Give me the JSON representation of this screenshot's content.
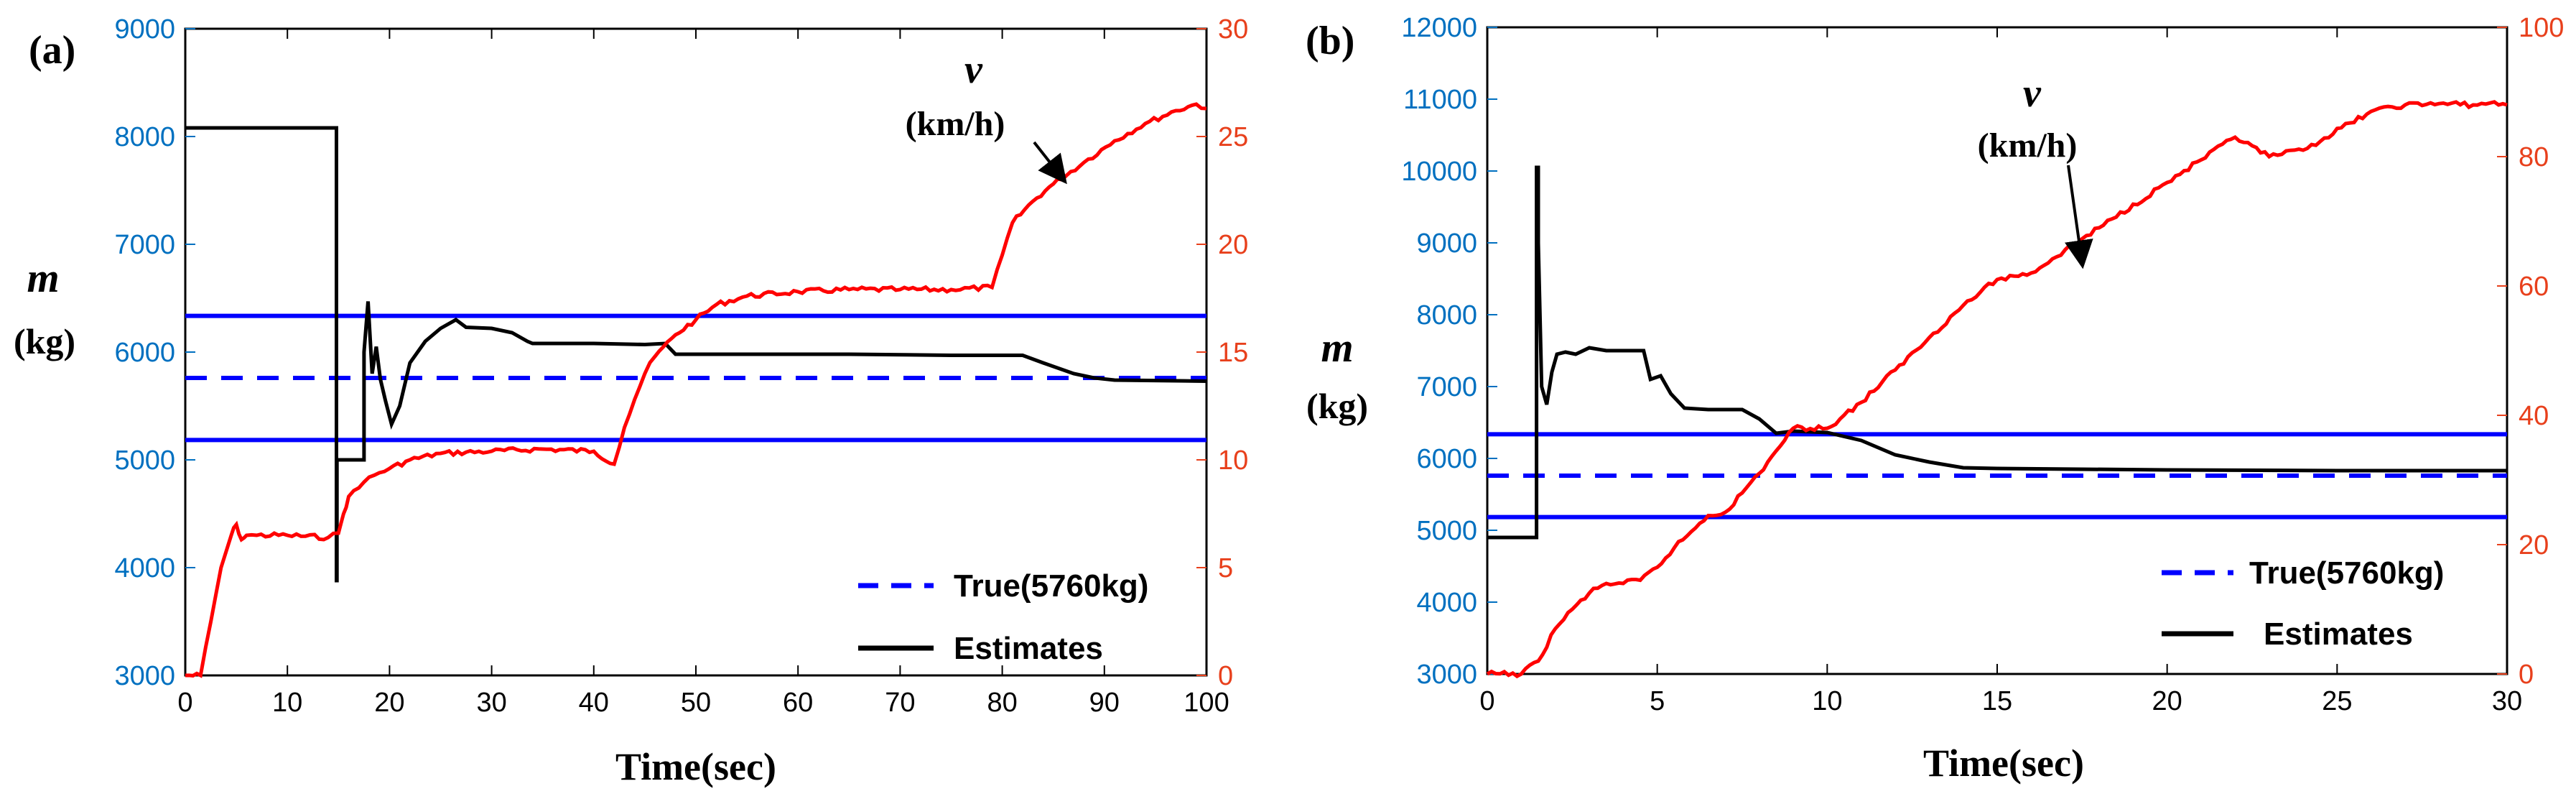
{
  "chart_data": [
    {
      "panel_label": "(a)",
      "type": "line",
      "xlabel": "Time(sec)",
      "ylabel_m": "m",
      "ylabel_unit": "(kg)",
      "xlim": [
        0,
        100
      ],
      "xticks": [
        0,
        10,
        20,
        30,
        40,
        50,
        60,
        70,
        80,
        90,
        100
      ],
      "ylim_left": [
        3000,
        9000
      ],
      "yticks_left": [
        3000,
        4000,
        5000,
        6000,
        7000,
        8000,
        9000
      ],
      "ylim_right": [
        0,
        30
      ],
      "yticks_right": [
        0,
        5,
        10,
        15,
        20,
        25,
        30
      ],
      "annotation_symbol": "v",
      "annotation_unit": "(km/h)",
      "annotation_target": [
        86,
        23
      ],
      "legend_true": "True(5760kg)",
      "legend_estimates": "Estimates",
      "bounds_kg": [
        6336,
        5184
      ],
      "true_kg": 5760,
      "series": [
        {
          "name": "Estimates",
          "axis": "left",
          "x": [
            0,
            14.8,
            14.8,
            14.85,
            14.85,
            17.5,
            17.5,
            17.9,
            18.3,
            18.7,
            19.1,
            19.6,
            20.2,
            21.0,
            22.0,
            23.5,
            25.0,
            26.5,
            27.5,
            30,
            32,
            33.5,
            34,
            40,
            45,
            47,
            48,
            55,
            65,
            75,
            82,
            84,
            87,
            89,
            91,
            100
          ],
          "y": [
            8080,
            8080,
            3880,
            3880,
            5000,
            5000,
            6000,
            6470,
            5800,
            6050,
            5750,
            5550,
            5330,
            5500,
            5900,
            6100,
            6220,
            6300,
            6230,
            6220,
            6180,
            6100,
            6080,
            6080,
            6070,
            6080,
            5980,
            5980,
            5980,
            5970,
            5970,
            5900,
            5800,
            5760,
            5740,
            5730
          ]
        },
        {
          "name": "v (km/h)",
          "axis": "right",
          "x": [
            0,
            1.5,
            2.5,
            3.5,
            4.5,
            5,
            5.5,
            6,
            7,
            10,
            14,
            15,
            15.5,
            16,
            17,
            18,
            19,
            20,
            22,
            25,
            30,
            35,
            40,
            42,
            43,
            44,
            45,
            46,
            48,
            50,
            52,
            55,
            60,
            65,
            70,
            75,
            79,
            80,
            81,
            83,
            85,
            88,
            91,
            94,
            97,
            99,
            100
          ],
          "y": [
            0,
            0,
            2.5,
            5,
            6.5,
            7,
            6.3,
            6.5,
            6.5,
            6.5,
            6.4,
            6.6,
            7.5,
            8.3,
            8.7,
            9.2,
            9.4,
            9.6,
            10,
            10.3,
            10.4,
            10.5,
            10.4,
            9.8,
            11.5,
            12.8,
            14,
            14.8,
            15.8,
            16.5,
            17.2,
            17.6,
            17.8,
            17.9,
            17.9,
            17.9,
            18,
            19.5,
            21,
            22,
            22.8,
            23.8,
            24.8,
            25.6,
            26.2,
            26.5,
            26.3
          ]
        }
      ]
    },
    {
      "panel_label": "(b)",
      "type": "line",
      "xlabel": "Time(sec)",
      "ylabel_m": "m",
      "ylabel_unit": "(kg)",
      "xlim": [
        0,
        30
      ],
      "xticks": [
        0,
        5,
        10,
        15,
        20,
        25,
        30
      ],
      "ylim_left": [
        3000,
        12000
      ],
      "yticks_left": [
        3000,
        4000,
        5000,
        6000,
        7000,
        8000,
        9000,
        10000,
        11000,
        12000
      ],
      "ylim_right": [
        0,
        100
      ],
      "yticks_right": [
        0,
        20,
        40,
        60,
        80,
        100
      ],
      "annotation_symbol": "v",
      "annotation_unit": "(km/h)",
      "annotation_target": [
        17.5,
        63.5
      ],
      "legend_true": "True(5760kg)",
      "legend_estimates": "Estimates",
      "bounds_kg": [
        6336,
        5184
      ],
      "true_kg": 5760,
      "series": [
        {
          "name": "Estimates",
          "axis": "left",
          "x": [
            0,
            1.45,
            1.45,
            1.5,
            1.5,
            1.6,
            1.75,
            1.9,
            2.05,
            2.3,
            2.6,
            3.0,
            3.5,
            4.0,
            4.6,
            4.8,
            5.1,
            5.4,
            5.8,
            6.5,
            7.5,
            8.0,
            8.5,
            9,
            10,
            11,
            12,
            13,
            14,
            15,
            20,
            25,
            30
          ],
          "y": [
            4900,
            4900,
            10050,
            10050,
            9000,
            7000,
            6750,
            7200,
            7450,
            7480,
            7450,
            7540,
            7500,
            7500,
            7500,
            7100,
            7150,
            6900,
            6700,
            6680,
            6680,
            6550,
            6350,
            6380,
            6360,
            6250,
            6050,
            5950,
            5870,
            5860,
            5840,
            5830,
            5830
          ]
        },
        {
          "name": "v (km/h)",
          "axis": "right",
          "x": [
            0,
            1.0,
            1.5,
            2.0,
            2.5,
            3.0,
            3.5,
            4.0,
            4.5,
            5.0,
            5.5,
            6.0,
            6.5,
            7.0,
            7.5,
            8.0,
            8.5,
            9,
            10,
            11,
            12,
            13,
            14,
            14.5,
            15,
            16,
            18,
            20,
            21,
            22,
            23,
            24,
            26,
            27,
            28,
            29,
            29.5,
            30
          ],
          "y": [
            0,
            0,
            2,
            7,
            10,
            12.5,
            14,
            14,
            14.5,
            16.5,
            19.5,
            22,
            24.5,
            25,
            28,
            31,
            34.5,
            38,
            38,
            42,
            47,
            52,
            57,
            59,
            61,
            62,
            69,
            76,
            79.5,
            83,
            80,
            81,
            87,
            88,
            88.2,
            88,
            88.3,
            88
          ]
        }
      ]
    }
  ]
}
